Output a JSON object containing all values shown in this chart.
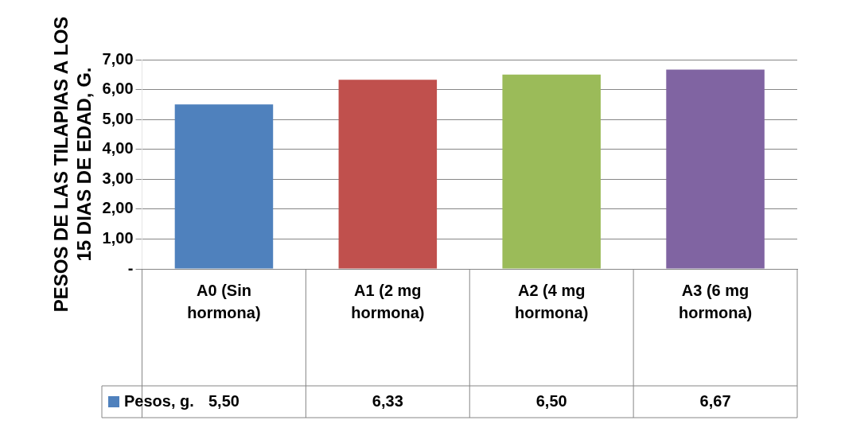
{
  "chart_data": {
    "type": "bar",
    "ylabel": "PESOS DE LAS TILAPIAS A LOS 15 DIAS DE EDAD, G.",
    "categories": [
      "A0 (Sin hormona)",
      "A1 (2 mg hormona)",
      "A2 (4 mg hormona)",
      "A3 (6 mg hormona)"
    ],
    "series": [
      {
        "name": "Pesos, g.",
        "color": "#4f81bd",
        "colors": [
          "#4f81bd",
          "#c0504d",
          "#9bbb59",
          "#8064a2"
        ],
        "values": [
          5.5,
          6.33,
          6.5,
          6.67
        ],
        "value_labels": [
          "5,50",
          "6,33",
          "6,50",
          "6,67"
        ]
      }
    ],
    "ylim": [
      0,
      7
    ],
    "yticks": [
      {
        "value": 0,
        "label": "-"
      },
      {
        "value": 1,
        "label": "1,00"
      },
      {
        "value": 2,
        "label": "2,00"
      },
      {
        "value": 3,
        "label": "3,00"
      },
      {
        "value": 4,
        "label": "4,00"
      },
      {
        "value": 5,
        "label": "5,00"
      },
      {
        "value": 6,
        "label": "6,00"
      },
      {
        "value": 7,
        "label": "7,00"
      }
    ],
    "grid": "y",
    "legend": "bottom"
  }
}
